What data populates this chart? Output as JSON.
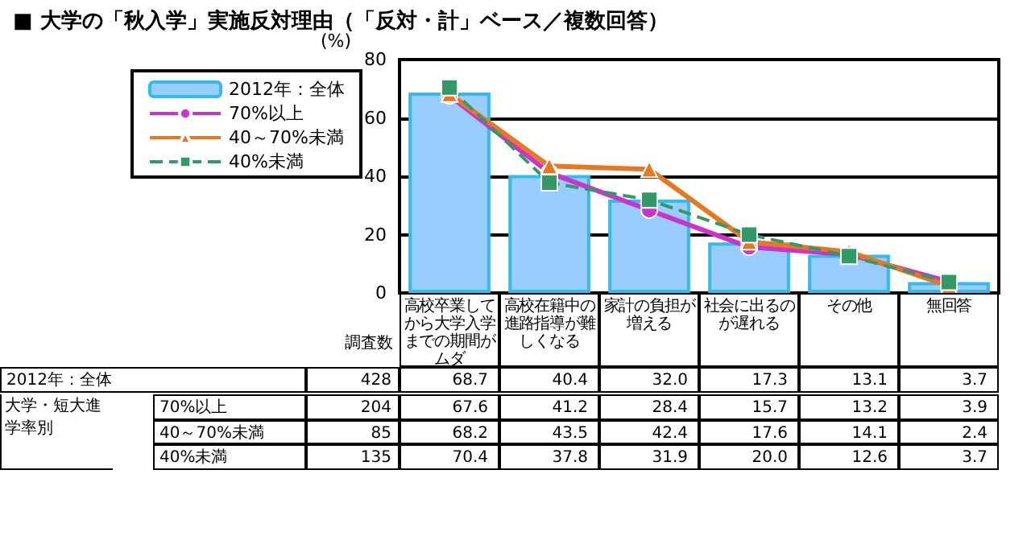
{
  "chart_data": {
    "type": "bar",
    "title": "■ 大学の「秋入学」実施反対理由（「反対・計」ベース／複数回答）",
    "ylabel": "(%)",
    "categories": [
      "高校卒業してから大学入学までの期間がムダ",
      "高校在籍中の進路指導が難しくなる",
      "家計の負担が増える",
      "社会に出るのが遅れる",
      "その他",
      "無回答"
    ],
    "series": [
      {
        "name": "2012年：全体",
        "color": "#99ccff",
        "values": [
          68.7,
          40.4,
          32.0,
          17.3,
          13.1,
          3.7
        ],
        "value_labels": [
          "68.7",
          "40.4",
          "32.0",
          "17.3",
          "13.1",
          "3.7"
        ]
      },
      {
        "name": "70%以上",
        "type": "line",
        "color": "#cc33cc",
        "marker": "circle",
        "line_style": "solid",
        "values": [
          67.6,
          41.2,
          28.4,
          15.7,
          13.2,
          3.9
        ],
        "value_labels": [
          "67.6",
          "41.2",
          "28.4",
          "15.7",
          "13.2",
          "3.9"
        ]
      },
      {
        "name": "40～70%未満",
        "type": "line",
        "color": "#e87722",
        "marker": "triangle",
        "line_style": "solid",
        "values": [
          68.2,
          43.5,
          42.4,
          17.6,
          14.1,
          2.4
        ],
        "value_labels": [
          "68.2",
          "43.5",
          "42.4",
          "17.6",
          "14.1",
          "2.4"
        ]
      },
      {
        "name": "40%未満",
        "type": "line",
        "color": "#339966",
        "marker": "square",
        "line_style": "dashed",
        "values": [
          70.4,
          37.8,
          31.9,
          20.0,
          12.6,
          3.7
        ],
        "value_labels": [
          "70.4",
          "37.8",
          "31.9",
          "20.0",
          "12.6",
          "3.7"
        ]
      }
    ],
    "annotations": [
      "調査数",
      "428",
      "204",
      "85",
      "135",
      "大学・短大進学率別"
    ],
    "ylim": [
      0,
      80
    ],
    "yticks": [
      0,
      20,
      40,
      60,
      80
    ],
    "grid": "y",
    "legend": "top left"
  }
}
